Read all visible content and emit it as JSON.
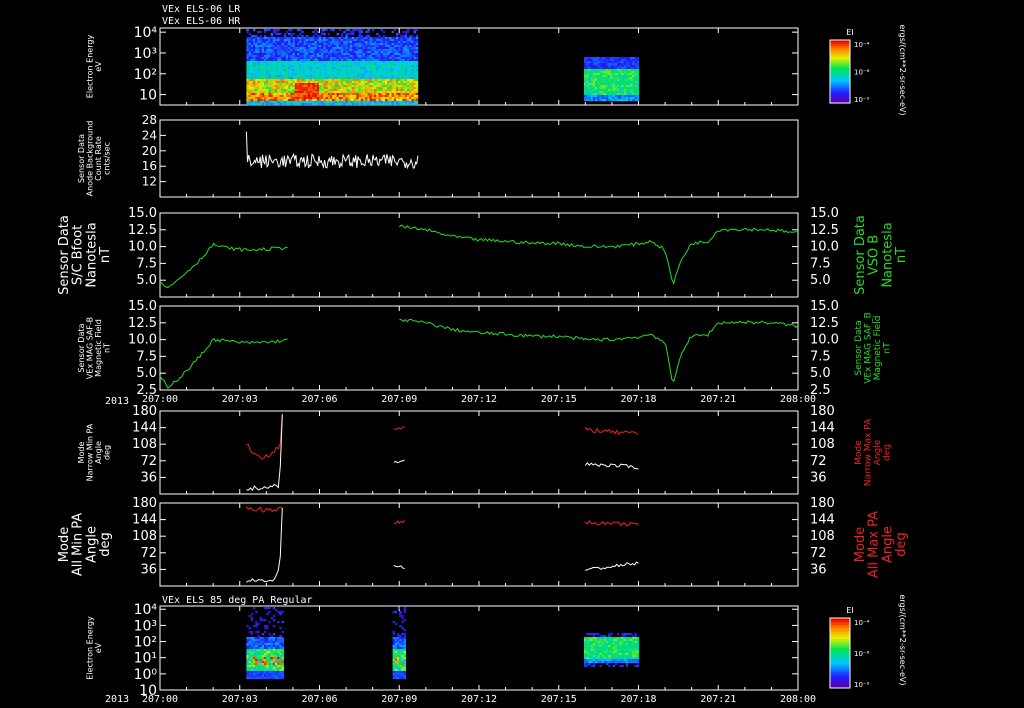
{
  "header": {
    "titles": [
      "VEx ELS-06 LR",
      "VEx ELS-06 HR"
    ],
    "bottom_title": "VEx ELS 85 deg PA Regular"
  },
  "colors": {
    "background": "#000000",
    "frame": "#ffffff",
    "green": "#22dd22",
    "red": "#ee2222",
    "white": "#ffffff"
  },
  "x_axis": {
    "year_label": "2013",
    "ticks": [
      "207:00",
      "207:03",
      "207:06",
      "207:09",
      "207:12",
      "207:15",
      "207:18",
      "207:21",
      "208:00"
    ],
    "range_minutes": [
      0,
      24
    ]
  },
  "chart_data": [
    {
      "id": "p1",
      "type": "heatmap",
      "ylabel_lines": [
        "Electron Energy",
        "eV"
      ],
      "yticks": [
        "10⁴",
        "10³",
        "10²",
        "10"
      ],
      "ylog": [
        0.5,
        4.2
      ],
      "colorbar": {
        "title": "EI",
        "ticks": [
          "10⁻⁴",
          "10⁻⁶",
          "10⁻⁹"
        ]
      },
      "unit_label": "ergs/(cm**2-sr-sec-eV)",
      "segments": [
        {
          "t0": 3.25,
          "t1": 9.7,
          "kind": "lr"
        },
        {
          "t0": 15.95,
          "t1": 18.0,
          "kind": "hr"
        }
      ]
    },
    {
      "id": "p2",
      "type": "line",
      "ylabel_lines": [
        "Sensor Data",
        "Anode Background",
        "Count Rate",
        "cnts/sec"
      ],
      "yticks": [
        "28",
        "24",
        "20",
        "16",
        "12"
      ],
      "ylim": [
        8,
        28
      ],
      "series": [
        {
          "name": "background",
          "color": "white",
          "t0": 3.25,
          "t1": 9.7,
          "base": 17.3,
          "noise": 1.8,
          "points": 150,
          "start_spike": 25
        }
      ]
    },
    {
      "id": "p3",
      "type": "line",
      "ylabel_lines": [
        "Sensor Data",
        "S/C Bfoot",
        "Nanotesla",
        "nT"
      ],
      "right_label_lines": [
        "Sensor Data",
        "VSO B",
        "Nanotesla",
        "nT"
      ],
      "yticks": [
        "15.0",
        "12.5",
        "10.0",
        "7.5",
        "5.0"
      ],
      "ylim": [
        2.5,
        15.0
      ],
      "series": [
        {
          "name": "B",
          "color": "green",
          "knots": [
            [
              0,
              5.0
            ],
            [
              0.3,
              3.8
            ],
            [
              0.8,
              5.5
            ],
            [
              1.5,
              8.0
            ],
            [
              2.0,
              10.3
            ],
            [
              2.5,
              9.8
            ],
            [
              3.2,
              9.5
            ],
            [
              4.0,
              9.6
            ],
            [
              4.8,
              9.9
            ],
            null,
            [
              9.0,
              13.0
            ],
            [
              10.0,
              12.5
            ],
            [
              11.0,
              11.5
            ],
            [
              12.0,
              11.0
            ],
            [
              13.0,
              10.8
            ],
            [
              14.0,
              10.5
            ],
            [
              15.0,
              10.5
            ],
            [
              16.0,
              10.0
            ],
            [
              17.0,
              10.0
            ],
            [
              18.0,
              10.4
            ],
            [
              18.5,
              10.8
            ],
            [
              19.0,
              9.5
            ],
            [
              19.3,
              4.3
            ],
            [
              19.6,
              8.0
            ],
            [
              20.0,
              10.5
            ],
            [
              20.6,
              10.7
            ],
            [
              21.0,
              12.5
            ],
            [
              22.0,
              12.6
            ],
            [
              23.0,
              12.5
            ],
            [
              24.0,
              12.0
            ]
          ],
          "noise": 0.25
        }
      ]
    },
    {
      "id": "p4",
      "type": "line",
      "ylabel_lines": [
        "Sensor Data",
        "VEx MAG SAF-B",
        "Magnetic Field",
        "nT"
      ],
      "right_label_lines": [
        "Sensor Data",
        "VEx MAG SAF_B",
        "Magnetic Field",
        "nT"
      ],
      "yticks": [
        "15.0",
        "12.5",
        "10.0",
        "7.5",
        "5.0",
        "2.5"
      ],
      "ylim": [
        2.5,
        15.0
      ],
      "series": [
        {
          "name": "B",
          "color": "green",
          "knots": [
            [
              0,
              4.5
            ],
            [
              0.3,
              3.0
            ],
            [
              0.8,
              4.5
            ],
            [
              1.5,
              7.5
            ],
            [
              2.0,
              10.0
            ],
            [
              2.5,
              9.8
            ],
            [
              3.2,
              9.5
            ],
            [
              4.0,
              9.6
            ],
            [
              4.8,
              9.9
            ],
            null,
            [
              9.0,
              13.0
            ],
            [
              10.0,
              12.5
            ],
            [
              11.0,
              11.5
            ],
            [
              12.0,
              11.0
            ],
            [
              13.0,
              10.8
            ],
            [
              14.0,
              10.5
            ],
            [
              15.0,
              10.5
            ],
            [
              16.0,
              10.0
            ],
            [
              17.0,
              10.0
            ],
            [
              18.0,
              10.4
            ],
            [
              18.5,
              10.8
            ],
            [
              19.0,
              9.5
            ],
            [
              19.3,
              3.2
            ],
            [
              19.6,
              8.0
            ],
            [
              20.0,
              10.5
            ],
            [
              20.6,
              10.7
            ],
            [
              21.0,
              12.5
            ],
            [
              22.0,
              12.6
            ],
            [
              23.0,
              12.5
            ],
            [
              24.0,
              12.0
            ]
          ],
          "noise": 0.25
        }
      ]
    },
    {
      "id": "p5",
      "type": "line",
      "ylabel_lines": [
        "Mode",
        "Narrow Min PA",
        "Angle",
        "deg"
      ],
      "right_label_lines": [
        "Mode",
        "Narrow Max PA",
        "Angle",
        "deg"
      ],
      "yticks": [
        "180",
        "144",
        "108",
        "72",
        "36"
      ],
      "ylim": [
        0,
        180
      ],
      "series": [
        {
          "name": "max",
          "color": "red",
          "segments": [
            {
              "knots": [
                [
                  3.25,
                  110
                ],
                [
                  3.5,
                  85
                ],
                [
                  4.0,
                  82
                ],
                [
                  4.4,
                  100
                ],
                [
                  4.55,
                  115
                ],
                [
                  4.6,
                  180
                ]
              ],
              "noise": 8
            },
            {
              "knots": [
                [
                  8.8,
                  140
                ],
                [
                  9.2,
                  143
                ]
              ],
              "noise": 4
            },
            {
              "knots": [
                [
                  16.0,
                  140
                ],
                [
                  17.0,
                  134
                ],
                [
                  18.0,
                  130
                ]
              ],
              "noise": 5
            }
          ]
        },
        {
          "name": "min",
          "color": "white",
          "segments": [
            {
              "knots": [
                [
                  3.25,
                  10
                ],
                [
                  3.8,
                  14
                ],
                [
                  4.3,
                  16
                ],
                [
                  4.5,
                  20
                ],
                [
                  4.6,
                  170
                ]
              ],
              "noise": 5
            },
            {
              "knots": [
                [
                  8.8,
                  68
                ],
                [
                  9.2,
                  72
                ]
              ],
              "noise": 3
            },
            {
              "knots": [
                [
                  16.0,
                  65
                ],
                [
                  17.0,
                  62
                ],
                [
                  18.0,
                  58
                ]
              ],
              "noise": 4
            }
          ]
        }
      ]
    },
    {
      "id": "p6",
      "type": "line",
      "ylabel_lines": [
        "Mode",
        "All Min PA",
        "Angle",
        "deg"
      ],
      "right_label_lines": [
        "Mode",
        "All Max PA",
        "Angle",
        "deg"
      ],
      "yticks": [
        "180",
        "144",
        "108",
        "72",
        "36"
      ],
      "ylim": [
        0,
        180
      ],
      "series": [
        {
          "name": "max",
          "color": "red",
          "segments": [
            {
              "knots": [
                [
                  3.25,
                  168
                ],
                [
                  4.0,
                  165
                ],
                [
                  4.6,
                  168
                ]
              ],
              "noise": 5
            },
            {
              "knots": [
                [
                  8.8,
                  135
                ],
                [
                  9.2,
                  142
                ]
              ],
              "noise": 4
            },
            {
              "knots": [
                [
                  16.0,
                  138
                ],
                [
                  17.0,
                  135
                ],
                [
                  18.0,
                  133
                ]
              ],
              "noise": 4
            }
          ]
        },
        {
          "name": "min",
          "color": "white",
          "segments": [
            {
              "knots": [
                [
                  3.25,
                  10
                ],
                [
                  3.8,
                  12
                ],
                [
                  4.3,
                  15
                ],
                [
                  4.5,
                  35
                ],
                [
                  4.6,
                  170
                ]
              ],
              "noise": 5
            },
            {
              "knots": [
                [
                  8.8,
                  45
                ],
                [
                  9.2,
                  40
                ]
              ],
              "noise": 3
            },
            {
              "knots": [
                [
                  16.0,
                  35
                ],
                [
                  17.0,
                  42
                ],
                [
                  18.0,
                  50
                ]
              ],
              "noise": 4
            }
          ]
        }
      ]
    },
    {
      "id": "p7",
      "type": "heatmap",
      "ylabel_lines": [
        "Electron Energy",
        "eV"
      ],
      "yticks": [
        "10⁴",
        "10³",
        "10²",
        "10¹",
        "10⁰",
        "10"
      ],
      "ylog": [
        -1.0,
        4.2
      ],
      "colorbar": {
        "title": "EI",
        "ticks": [
          "10⁻⁴",
          "10⁻⁶",
          "10⁻⁹"
        ]
      },
      "unit_label": "ergs/(cm**2-sr-sec-eV)",
      "segments": [
        {
          "t0": 3.25,
          "t1": 4.6,
          "kind": "pa"
        },
        {
          "t0": 8.75,
          "t1": 9.2,
          "kind": "pa"
        },
        {
          "t0": 15.95,
          "t1": 18.0,
          "kind": "hr"
        }
      ]
    }
  ]
}
